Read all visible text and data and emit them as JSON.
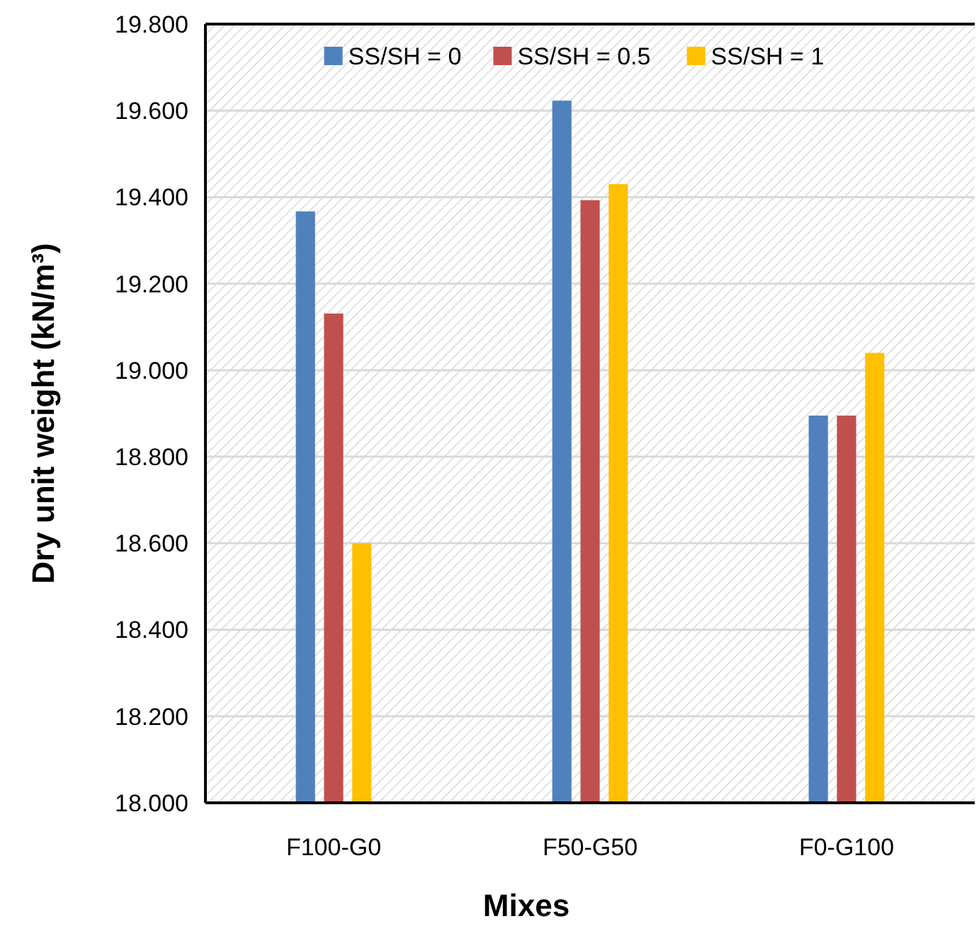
{
  "chart_data": {
    "type": "bar",
    "xlabel": "Mixes",
    "ylabel": "Dry unit weight (kN/m³)",
    "categories": [
      "F100-G0",
      "F50-G50",
      "F0-G100"
    ],
    "series": [
      {
        "name": "SS/SH = 0",
        "color": "#4f81bd",
        "values": [
          19.367,
          19.623,
          18.895
        ]
      },
      {
        "name": "SS/SH = 0.5",
        "color": "#c0504d",
        "values": [
          19.131,
          19.393,
          18.895
        ]
      },
      {
        "name": "SS/SH = 1",
        "color": "#ffc000",
        "values": [
          18.6,
          19.43,
          19.04
        ]
      }
    ],
    "ylim": [
      18,
      19.8
    ],
    "yticks": [
      {
        "value": 18,
        "label": "18.000"
      },
      {
        "value": 18.2,
        "label": "18.200"
      },
      {
        "value": 18.4,
        "label": "18.400"
      },
      {
        "value": 18.6,
        "label": "18.600"
      },
      {
        "value": 18.8,
        "label": "18.800"
      },
      {
        "value": 19,
        "label": "19.000"
      },
      {
        "value": 19.2,
        "label": "19.200"
      },
      {
        "value": 19.4,
        "label": "19.400"
      },
      {
        "value": 19.6,
        "label": "19.600"
      },
      {
        "value": 19.8,
        "label": "19.800"
      }
    ],
    "grid": "y",
    "legend": "top"
  }
}
